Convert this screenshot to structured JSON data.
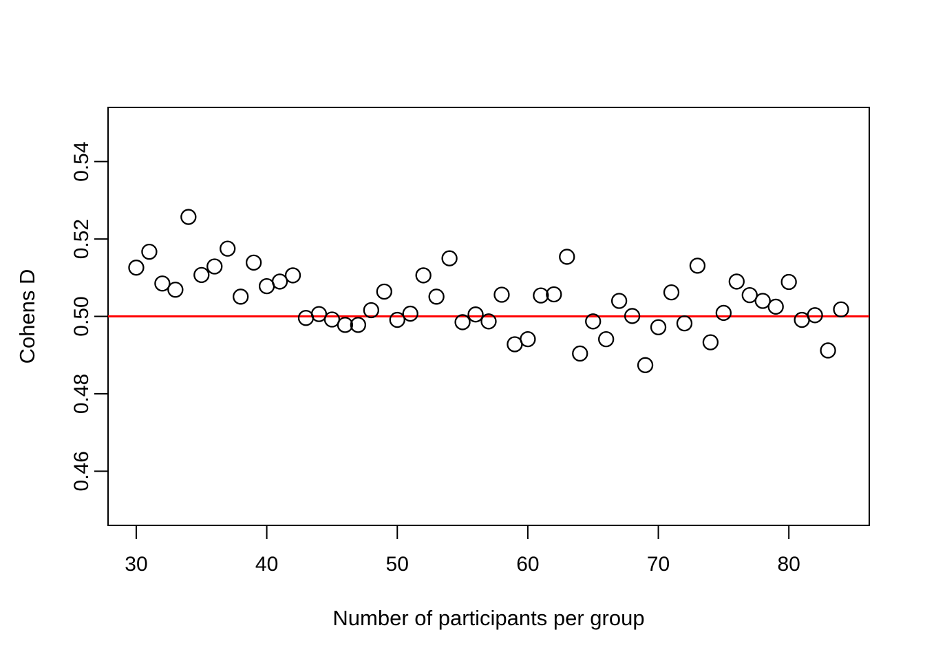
{
  "chart_data": {
    "type": "scatter",
    "title": "",
    "xlabel": "Number of participants per group",
    "ylabel": "Cohens D",
    "x_ticks": [
      30,
      40,
      50,
      60,
      70,
      80
    ],
    "x_tick_labels": [
      "30",
      "40",
      "50",
      "60",
      "70",
      "80"
    ],
    "y_ticks": [
      0.46,
      0.48,
      0.5,
      0.52,
      0.54
    ],
    "y_tick_labels": [
      "0.46",
      "0.48",
      "0.50",
      "0.52",
      "0.54"
    ],
    "xlim": [
      27.84,
      86.16
    ],
    "ylim": [
      0.446,
      0.554
    ],
    "grid": false,
    "legend": null,
    "point_style": "open-circle",
    "reference_line": {
      "y": 0.5,
      "color": "#FF0000"
    },
    "colors": {
      "points": "#000000",
      "axis": "#000000",
      "background": "#FFFFFF"
    },
    "x": [
      30,
      31,
      32,
      33,
      34,
      35,
      36,
      37,
      38,
      39,
      40,
      41,
      42,
      43,
      44,
      45,
      46,
      47,
      48,
      49,
      50,
      51,
      52,
      53,
      54,
      55,
      56,
      57,
      58,
      59,
      60,
      61,
      62,
      63,
      64,
      65,
      66,
      67,
      68,
      69,
      70,
      71,
      72,
      73,
      74,
      75,
      76,
      77,
      78,
      79,
      80,
      81,
      82,
      83,
      84
    ],
    "y": [
      0.5126,
      0.5167,
      0.5085,
      0.5069,
      0.5257,
      0.5107,
      0.5129,
      0.5175,
      0.5051,
      0.5139,
      0.5078,
      0.509,
      0.5106,
      0.4996,
      0.5006,
      0.4992,
      0.4978,
      0.4978,
      0.5016,
      0.5064,
      0.4991,
      0.5007,
      0.5106,
      0.5051,
      0.515,
      0.4985,
      0.5005,
      0.4987,
      0.5056,
      0.4928,
      0.4941,
      0.5054,
      0.5057,
      0.5154,
      0.4904,
      0.4987,
      0.4941,
      0.504,
      0.5001,
      0.4874,
      0.4972,
      0.5062,
      0.4982,
      0.5131,
      0.4933,
      0.5009,
      0.509,
      0.5055,
      0.504,
      0.5025,
      0.5089,
      0.4991,
      0.5003,
      0.4912,
      0.5018
    ]
  }
}
